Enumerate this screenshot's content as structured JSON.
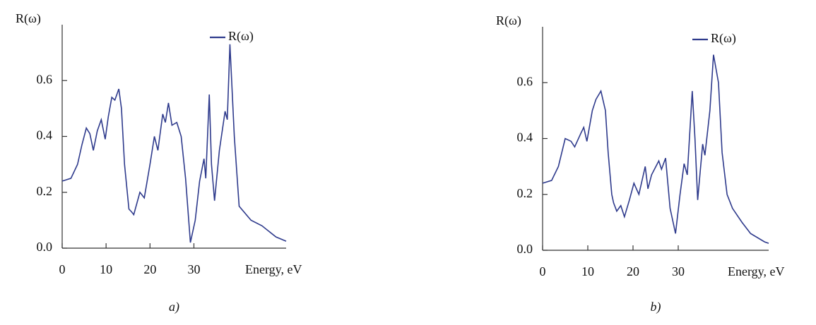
{
  "chart_data": [
    {
      "type": "line",
      "ylabel": "R(ω)",
      "xlabel": "Energy, eV",
      "caption": "a)",
      "x": [
        0,
        2,
        3.5,
        4.5,
        5.5,
        6.3,
        7.1,
        8,
        8.9,
        9.8,
        10.5,
        11.3,
        12,
        12.9,
        13.5,
        14.2,
        15.2,
        15.8,
        16.3,
        17.7,
        18.7,
        20,
        21,
        21.8,
        22.9,
        23.5,
        24.2,
        25,
        26.1,
        27.1,
        28.1,
        29.2,
        30.3,
        31.3,
        32.3,
        32.7,
        33.5,
        34,
        34.7,
        35.8,
        37.1,
        37.6,
        38.2,
        39.2,
        40.3,
        43,
        45.5,
        48.7,
        51
      ],
      "series": [
        {
          "name": "R(ω)",
          "color": "#2e3a8c",
          "values": [
            0.24,
            0.25,
            0.3,
            0.37,
            0.43,
            0.41,
            0.35,
            0.42,
            0.46,
            0.39,
            0.47,
            0.54,
            0.53,
            0.57,
            0.5,
            0.3,
            0.14,
            0.13,
            0.12,
            0.2,
            0.18,
            0.3,
            0.4,
            0.35,
            0.48,
            0.45,
            0.52,
            0.44,
            0.45,
            0.4,
            0.25,
            0.02,
            0.1,
            0.24,
            0.32,
            0.25,
            0.55,
            0.3,
            0.17,
            0.35,
            0.49,
            0.46,
            0.73,
            0.4,
            0.15,
            0.1,
            0.08,
            0.04,
            0.025
          ]
        }
      ],
      "xlim": [
        0,
        51
      ],
      "ylim": [
        0,
        0.8
      ],
      "xticks": [
        0,
        10,
        20,
        30
      ],
      "yticks": [
        {
          "value": 0,
          "label": "0.0"
        },
        0.2,
        0.4,
        0.6
      ],
      "legend": "upper right"
    },
    {
      "type": "line",
      "ylabel": "R(ω)",
      "xlabel": "Energy, eV",
      "caption": "b)",
      "x": [
        0,
        2,
        3.5,
        5,
        6.3,
        7.1,
        8.5,
        9.1,
        9.8,
        11,
        11.8,
        12.9,
        13.9,
        14.5,
        15.3,
        15.7,
        16.4,
        17.3,
        18.1,
        19.2,
        20.2,
        21.3,
        22.7,
        23.3,
        24.1,
        25.7,
        26.3,
        27.2,
        28.2,
        29.4,
        30.4,
        31.3,
        32,
        33.1,
        33.7,
        34.3,
        35.4,
        35.9,
        37,
        37.8,
        38.9,
        39.7,
        40.8,
        42,
        44.1,
        46,
        49.1,
        50
      ],
      "series": [
        {
          "name": "R(ω)",
          "color": "#2e3a8c",
          "values": [
            0.24,
            0.25,
            0.3,
            0.4,
            0.39,
            0.37,
            0.42,
            0.44,
            0.39,
            0.5,
            0.54,
            0.57,
            0.5,
            0.35,
            0.2,
            0.17,
            0.14,
            0.16,
            0.12,
            0.18,
            0.24,
            0.2,
            0.3,
            0.22,
            0.27,
            0.32,
            0.29,
            0.33,
            0.15,
            0.06,
            0.2,
            0.31,
            0.27,
            0.57,
            0.4,
            0.18,
            0.38,
            0.34,
            0.5,
            0.7,
            0.6,
            0.35,
            0.2,
            0.15,
            0.1,
            0.06,
            0.03,
            0.025
          ]
        }
      ],
      "xlim": [
        0,
        50
      ],
      "ylim": [
        0,
        0.8
      ],
      "xticks": [
        0,
        10,
        20,
        30
      ],
      "yticks": [
        {
          "value": 0,
          "label": "0.0"
        },
        0.2,
        0.4,
        0.6
      ],
      "legend": "upper right"
    }
  ]
}
